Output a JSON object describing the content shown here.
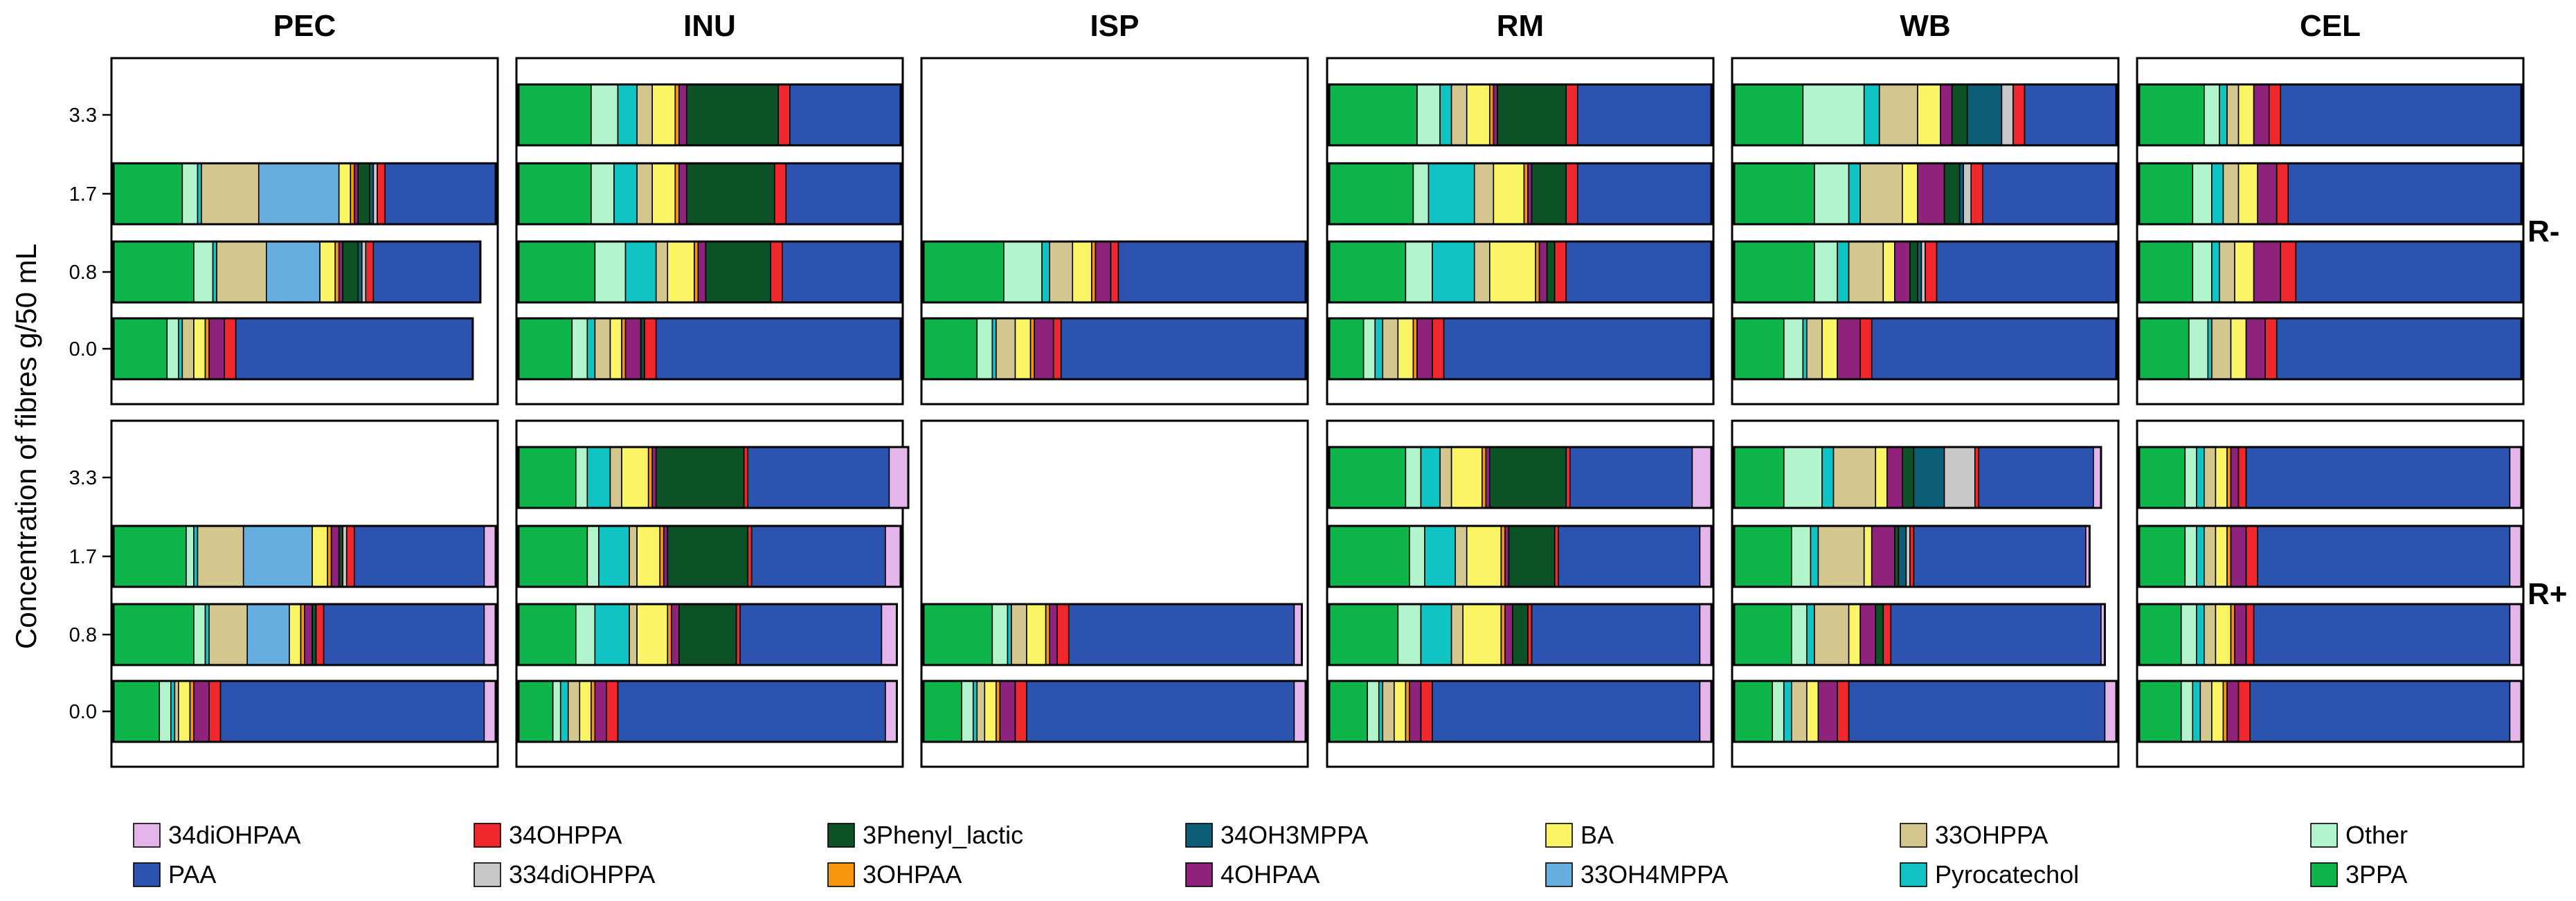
{
  "chart_data": {
    "type": "stacked-horizontal-bar",
    "ylabel": "Concentration of fibres g/50 mL",
    "row_labels": [
      "R-",
      "R+"
    ],
    "column_labels": [
      "PEC",
      "INU",
      "ISP",
      "RM",
      "WB",
      "CEL"
    ],
    "y_ticks": [
      "3.3",
      "1.7",
      "0.8",
      "0.0"
    ],
    "legend_order": [
      "34diOHPAA",
      "34OHPPA",
      "3Phenyl_lactic",
      "34OH3MPPA",
      "BA",
      "33OHPPA",
      "Other",
      "PAA",
      "334diOHPPA",
      "3OHPAA",
      "4OHPAA",
      "33OH4MPPA",
      "Pyrocatechol",
      "3PPA"
    ],
    "stack_order": [
      "3PPA",
      "Other",
      "Pyrocatechol",
      "33OHPPA",
      "33OH4MPPA",
      "BA",
      "3OHPAA",
      "4OHPAA",
      "3Phenyl_lactic",
      "34OH3MPPA",
      "334diOHPPA",
      "34OHPPA",
      "PAA",
      "34diOHPAA"
    ],
    "colors": {
      "34diOHPAA": "#e3b5ea",
      "34OHPPA": "#f0282d",
      "3Phenyl_lactic": "#0c5226",
      "34OH3MPPA": "#0b5e75",
      "BA": "#fbf566",
      "33OHPPA": "#d3c68f",
      "Other": "#b2f4cc",
      "PAA": "#2c53b0",
      "334diOHPPA": "#c8c8c8",
      "3OHPAA": "#f7950e",
      "4OHPAA": "#8f237b",
      "33OH4MPPA": "#66aee0",
      "Pyrocatechol": "#10c4c4",
      "3PPA": "#0eb54a"
    },
    "panels": [
      {
        "row": "R-",
        "column": "PEC",
        "bars": [
          {
            "conc": "3.3",
            "segments": {}
          },
          {
            "conc": "1.7",
            "segments": {
              "3PPA": 0.18,
              "Other": 0.04,
              "Pyrocatechol": 0.01,
              "33OHPPA": 0.15,
              "33OH4MPPA": 0.21,
              "BA": 0.03,
              "3OHPAA": 0.01,
              "4OHPAA": 0.01,
              "3Phenyl_lactic": 0.03,
              "34OH3MPPA": 0.01,
              "334diOHPPA": 0.01,
              "34OHPPA": 0.02,
              "PAA": 0.29
            }
          },
          {
            "conc": "0.8",
            "segments": {
              "3PPA": 0.21,
              "Other": 0.05,
              "Pyrocatechol": 0.01,
              "33OHPPA": 0.13,
              "33OH4MPPA": 0.14,
              "BA": 0.04,
              "3OHPAA": 0.01,
              "4OHPAA": 0.01,
              "3Phenyl_lactic": 0.04,
              "34OH3MPPA": 0.01,
              "334diOHPPA": 0.01,
              "34OHPPA": 0.02,
              "PAA": 0.28
            }
          },
          {
            "conc": "0.0",
            "segments": {
              "3PPA": 0.14,
              "Other": 0.03,
              "Pyrocatechol": 0.01,
              "33OHPPA": 0.03,
              "BA": 0.03,
              "3OHPAA": 0.01,
              "4OHPAA": 0.04,
              "34OHPPA": 0.03,
              "PAA": 0.62
            }
          }
        ]
      },
      {
        "row": "R-",
        "column": "INU",
        "bars": [
          {
            "conc": "3.3",
            "segments": {
              "3PPA": 0.19,
              "Other": 0.07,
              "Pyrocatechol": 0.05,
              "33OHPPA": 0.04,
              "BA": 0.06,
              "3OHPAA": 0.01,
              "4OHPAA": 0.02,
              "3Phenyl_lactic": 0.24,
              "34OHPPA": 0.03,
              "PAA": 0.29
            }
          },
          {
            "conc": "1.7",
            "segments": {
              "3PPA": 0.19,
              "Other": 0.06,
              "Pyrocatechol": 0.06,
              "33OHPPA": 0.04,
              "BA": 0.06,
              "3OHPAA": 0.01,
              "4OHPAA": 0.02,
              "3Phenyl_lactic": 0.23,
              "34OHPPA": 0.03,
              "PAA": 0.3
            }
          },
          {
            "conc": "0.8",
            "segments": {
              "3PPA": 0.2,
              "Other": 0.08,
              "Pyrocatechol": 0.08,
              "33OHPPA": 0.03,
              "BA": 0.07,
              "3OHPAA": 0.01,
              "4OHPAA": 0.02,
              "3Phenyl_lactic": 0.17,
              "34OHPPA": 0.03,
              "PAA": 0.31
            }
          },
          {
            "conc": "0.0",
            "segments": {
              "3PPA": 0.14,
              "Other": 0.04,
              "Pyrocatechol": 0.02,
              "33OHPPA": 0.04,
              "BA": 0.03,
              "3OHPAA": 0.01,
              "4OHPAA": 0.04,
              "3Phenyl_lactic": 0.01,
              "34OHPPA": 0.03,
              "PAA": 0.64
            }
          }
        ]
      },
      {
        "row": "R-",
        "column": "ISP",
        "bars": [
          {
            "conc": "3.3",
            "segments": {}
          },
          {
            "conc": "1.7",
            "segments": {}
          },
          {
            "conc": "0.8",
            "segments": {
              "3PPA": 0.21,
              "Other": 0.1,
              "Pyrocatechol": 0.02,
              "33OHPPA": 0.06,
              "BA": 0.05,
              "3OHPAA": 0.01,
              "4OHPAA": 0.04,
              "34OHPPA": 0.02,
              "PAA": 0.49
            }
          },
          {
            "conc": "0.0",
            "segments": {
              "3PPA": 0.14,
              "Other": 0.04,
              "Pyrocatechol": 0.01,
              "33OHPPA": 0.05,
              "BA": 0.04,
              "3OHPAA": 0.01,
              "4OHPAA": 0.05,
              "34OHPPA": 0.02,
              "PAA": 0.64
            }
          }
        ]
      },
      {
        "row": "R-",
        "column": "RM",
        "bars": [
          {
            "conc": "3.3",
            "segments": {
              "3PPA": 0.23,
              "Other": 0.06,
              "Pyrocatechol": 0.03,
              "33OHPPA": 0.04,
              "BA": 0.06,
              "3OHPAA": 0.01,
              "4OHPAA": 0.01,
              "3Phenyl_lactic": 0.18,
              "34OHPPA": 0.03,
              "PAA": 0.35
            }
          },
          {
            "conc": "1.7",
            "segments": {
              "3PPA": 0.22,
              "Other": 0.04,
              "Pyrocatechol": 0.12,
              "33OHPPA": 0.05,
              "BA": 0.08,
              "3OHPAA": 0.01,
              "4OHPAA": 0.01,
              "3Phenyl_lactic": 0.09,
              "34OHPPA": 0.03,
              "PAA": 0.35
            }
          },
          {
            "conc": "0.8",
            "segments": {
              "3PPA": 0.2,
              "Other": 0.07,
              "Pyrocatechol": 0.11,
              "33OHPPA": 0.04,
              "BA": 0.12,
              "3OHPAA": 0.01,
              "4OHPAA": 0.02,
              "3Phenyl_lactic": 0.02,
              "34OHPPA": 0.03,
              "PAA": 0.38
            }
          },
          {
            "conc": "0.0",
            "segments": {
              "3PPA": 0.09,
              "Other": 0.03,
              "Pyrocatechol": 0.02,
              "33OHPPA": 0.04,
              "BA": 0.04,
              "3OHPAA": 0.01,
              "4OHPAA": 0.04,
              "34OHPPA": 0.03,
              "PAA": 0.7
            }
          }
        ]
      },
      {
        "row": "R-",
        "column": "WB",
        "bars": [
          {
            "conc": "3.3",
            "segments": {
              "3PPA": 0.18,
              "Other": 0.16,
              "Pyrocatechol": 0.04,
              "33OHPPA": 0.1,
              "BA": 0.06,
              "4OHPAA": 0.03,
              "34OH3MPPA": 0.09,
              "3Phenyl_lactic": 0.04,
              "334diOHPPA": 0.03,
              "34OHPPA": 0.03,
              "PAA": 0.24
            }
          },
          {
            "conc": "1.7",
            "segments": {
              "3PPA": 0.21,
              "Other": 0.09,
              "Pyrocatechol": 0.03,
              "33OHPPA": 0.11,
              "BA": 0.04,
              "4OHPAA": 0.07,
              "3Phenyl_lactic": 0.04,
              "34OH3MPPA": 0.01,
              "334diOHPPA": 0.02,
              "34OHPPA": 0.03,
              "PAA": 0.35
            }
          },
          {
            "conc": "0.8",
            "segments": {
              "3PPA": 0.21,
              "Other": 0.06,
              "Pyrocatechol": 0.03,
              "33OHPPA": 0.09,
              "BA": 0.03,
              "4OHPAA": 0.04,
              "3Phenyl_lactic": 0.02,
              "34OH3MPPA": 0.01,
              "334diOHPPA": 0.01,
              "34OHPPA": 0.03,
              "PAA": 0.47
            }
          },
          {
            "conc": "0.0",
            "segments": {
              "3PPA": 0.13,
              "Other": 0.05,
              "Pyrocatechol": 0.01,
              "33OHPPA": 0.04,
              "BA": 0.04,
              "4OHPAA": 0.06,
              "34OHPPA": 0.03,
              "PAA": 0.64
            }
          }
        ]
      },
      {
        "row": "R-",
        "column": "CEL",
        "bars": [
          {
            "conc": "3.3",
            "segments": {
              "3PPA": 0.17,
              "Other": 0.04,
              "Pyrocatechol": 0.02,
              "33OHPPA": 0.03,
              "BA": 0.04,
              "4OHPAA": 0.04,
              "34OHPPA": 0.03,
              "PAA": 0.63
            }
          },
          {
            "conc": "1.7",
            "segments": {
              "3PPA": 0.14,
              "Other": 0.05,
              "Pyrocatechol": 0.03,
              "33OHPPA": 0.04,
              "BA": 0.05,
              "4OHPAA": 0.05,
              "34OHPPA": 0.03,
              "PAA": 0.61
            }
          },
          {
            "conc": "0.8",
            "segments": {
              "3PPA": 0.14,
              "Other": 0.05,
              "Pyrocatechol": 0.02,
              "33OHPPA": 0.04,
              "BA": 0.05,
              "4OHPAA": 0.07,
              "34OHPPA": 0.04,
              "PAA": 0.59
            }
          },
          {
            "conc": "0.0",
            "segments": {
              "3PPA": 0.13,
              "Other": 0.05,
              "Pyrocatechol": 0.01,
              "33OHPPA": 0.05,
              "BA": 0.04,
              "4OHPAA": 0.05,
              "34OHPPA": 0.03,
              "PAA": 0.64
            }
          }
        ]
      },
      {
        "row": "R+",
        "column": "PEC",
        "bars": [
          {
            "conc": "3.3",
            "segments": {}
          },
          {
            "conc": "1.7",
            "segments": {
              "3PPA": 0.19,
              "Other": 0.02,
              "Pyrocatechol": 0.01,
              "33OHPPA": 0.12,
              "33OH4MPPA": 0.18,
              "BA": 0.04,
              "3OHPAA": 0.01,
              "4OHPAA": 0.02,
              "3Phenyl_lactic": 0.01,
              "334diOHPPA": 0.01,
              "34OHPPA": 0.02,
              "PAA": 0.34,
              "34diOHPAA": 0.03
            }
          },
          {
            "conc": "0.8",
            "segments": {
              "3PPA": 0.21,
              "Other": 0.03,
              "Pyrocatechol": 0.01,
              "33OHPPA": 0.1,
              "33OH4MPPA": 0.11,
              "BA": 0.03,
              "3OHPAA": 0.01,
              "4OHPAA": 0.02,
              "3Phenyl_lactic": 0.01,
              "34OHPPA": 0.02,
              "PAA": 0.42,
              "34diOHPAA": 0.03
            }
          },
          {
            "conc": "0.0",
            "segments": {
              "3PPA": 0.12,
              "Other": 0.03,
              "Pyrocatechol": 0.01,
              "33OHPPA": 0.01,
              "BA": 0.03,
              "3OHPAA": 0.01,
              "4OHPAA": 0.04,
              "34OHPPA": 0.03,
              "PAA": 0.69,
              "34diOHPAA": 0.03
            }
          }
        ]
      },
      {
        "row": "R+",
        "column": "INU",
        "bars": [
          {
            "conc": "3.3",
            "segments": {
              "3PPA": 0.15,
              "Other": 0.03,
              "Pyrocatechol": 0.06,
              "33OHPPA": 0.03,
              "BA": 0.07,
              "3OHPAA": 0.01,
              "4OHPAA": 0.01,
              "3Phenyl_lactic": 0.23,
              "34OHPPA": 0.01,
              "PAA": 0.37,
              "34diOHPAA": 0.05
            }
          },
          {
            "conc": "1.7",
            "segments": {
              "3PPA": 0.18,
              "Other": 0.03,
              "Pyrocatechol": 0.08,
              "33OHPPA": 0.02,
              "BA": 0.06,
              "3OHPAA": 0.01,
              "4OHPAA": 0.01,
              "3Phenyl_lactic": 0.21,
              "34OHPPA": 0.01,
              "PAA": 0.35,
              "34diOHPAA": 0.04
            }
          },
          {
            "conc": "0.8",
            "segments": {
              "3PPA": 0.15,
              "Other": 0.05,
              "Pyrocatechol": 0.09,
              "33OHPPA": 0.02,
              "BA": 0.08,
              "3OHPAA": 0.01,
              "4OHPAA": 0.02,
              "3Phenyl_lactic": 0.15,
              "34OHPPA": 0.01,
              "PAA": 0.37,
              "34diOHPAA": 0.04
            }
          },
          {
            "conc": "0.0",
            "segments": {
              "3PPA": 0.09,
              "Other": 0.02,
              "Pyrocatechol": 0.02,
              "33OHPPA": 0.03,
              "BA": 0.03,
              "3OHPAA": 0.01,
              "4OHPAA": 0.03,
              "34OHPPA": 0.03,
              "PAA": 0.7,
              "34diOHPAA": 0.03
            }
          }
        ]
      },
      {
        "row": "R+",
        "column": "ISP",
        "bars": [
          {
            "conc": "3.3",
            "segments": {}
          },
          {
            "conc": "1.7",
            "segments": {}
          },
          {
            "conc": "0.8",
            "segments": {
              "3PPA": 0.18,
              "Other": 0.04,
              "Pyrocatechol": 0.01,
              "33OHPPA": 0.04,
              "BA": 0.05,
              "3OHPAA": 0.01,
              "4OHPAA": 0.02,
              "34OHPPA": 0.03,
              "PAA": 0.59,
              "34diOHPAA": 0.02
            }
          },
          {
            "conc": "0.0",
            "segments": {
              "3PPA": 0.1,
              "Other": 0.03,
              "Pyrocatechol": 0.01,
              "33OHPPA": 0.02,
              "BA": 0.03,
              "3OHPAA": 0.01,
              "4OHPAA": 0.04,
              "34OHPPA": 0.03,
              "PAA": 0.7,
              "34diOHPAA": 0.03
            }
          }
        ]
      },
      {
        "row": "R+",
        "column": "RM",
        "bars": [
          {
            "conc": "3.3",
            "segments": {
              "3PPA": 0.2,
              "Other": 0.04,
              "Pyrocatechol": 0.05,
              "33OHPPA": 0.03,
              "BA": 0.08,
              "3OHPAA": 0.01,
              "4OHPAA": 0.01,
              "3Phenyl_lactic": 0.2,
              "34OHPPA": 0.01,
              "PAA": 0.32,
              "34diOHPAA": 0.05
            }
          },
          {
            "conc": "1.7",
            "segments": {
              "3PPA": 0.21,
              "Other": 0.04,
              "Pyrocatechol": 0.08,
              "33OHPPA": 0.03,
              "BA": 0.09,
              "3OHPAA": 0.01,
              "4OHPAA": 0.01,
              "3Phenyl_lactic": 0.12,
              "34OHPPA": 0.01,
              "PAA": 0.37,
              "34diOHPAA": 0.03
            }
          },
          {
            "conc": "0.8",
            "segments": {
              "3PPA": 0.18,
              "Other": 0.06,
              "Pyrocatechol": 0.08,
              "33OHPPA": 0.03,
              "BA": 0.1,
              "3OHPAA": 0.01,
              "4OHPAA": 0.02,
              "3Phenyl_lactic": 0.04,
              "34OHPPA": 0.01,
              "PAA": 0.44,
              "34diOHPAA": 0.03
            }
          },
          {
            "conc": "0.0",
            "segments": {
              "3PPA": 0.1,
              "Other": 0.03,
              "Pyrocatechol": 0.01,
              "33OHPPA": 0.03,
              "BA": 0.03,
              "3OHPAA": 0.01,
              "4OHPAA": 0.03,
              "34OHPPA": 0.03,
              "PAA": 0.7,
              "34diOHPAA": 0.03
            }
          }
        ]
      },
      {
        "row": "R+",
        "column": "WB",
        "bars": [
          {
            "conc": "3.3",
            "segments": {
              "3PPA": 0.13,
              "Other": 0.1,
              "Pyrocatechol": 0.03,
              "33OHPPA": 0.11,
              "BA": 0.03,
              "4OHPAA": 0.04,
              "34OH3MPPA": 0.08,
              "3Phenyl_lactic": 0.03,
              "334diOHPPA": 0.08,
              "34OHPPA": 0.01,
              "PAA": 0.3,
              "34diOHPAA": 0.02
            }
          },
          {
            "conc": "1.7",
            "segments": {
              "3PPA": 0.15,
              "Other": 0.05,
              "Pyrocatechol": 0.02,
              "33OHPPA": 0.12,
              "BA": 0.02,
              "4OHPAA": 0.06,
              "34OH3MPPA": 0.02,
              "3Phenyl_lactic": 0.01,
              "334diOHPPA": 0.01,
              "34OHPPA": 0.01,
              "PAA": 0.45,
              "34diOHPAA": 0.01
            }
          },
          {
            "conc": "0.8",
            "segments": {
              "3PPA": 0.15,
              "Other": 0.04,
              "Pyrocatechol": 0.02,
              "33OHPPA": 0.09,
              "BA": 0.03,
              "4OHPAA": 0.04,
              "3Phenyl_lactic": 0.02,
              "34OHPPA": 0.02,
              "PAA": 0.55,
              "34diOHPAA": 0.01
            }
          },
          {
            "conc": "0.0",
            "segments": {
              "3PPA": 0.1,
              "Other": 0.03,
              "Pyrocatechol": 0.02,
              "33OHPPA": 0.04,
              "BA": 0.03,
              "4OHPAA": 0.05,
              "34OHPPA": 0.03,
              "PAA": 0.67,
              "34diOHPAA": 0.03
            }
          }
        ]
      },
      {
        "row": "R+",
        "column": "CEL",
        "bars": [
          {
            "conc": "3.3",
            "segments": {
              "3PPA": 0.12,
              "Other": 0.03,
              "Pyrocatechol": 0.02,
              "33OHPPA": 0.03,
              "BA": 0.03,
              "3OHPAA": 0.01,
              "4OHPAA": 0.02,
              "34OHPPA": 0.02,
              "PAA": 0.69,
              "34diOHPAA": 0.03
            }
          },
          {
            "conc": "1.7",
            "segments": {
              "3PPA": 0.12,
              "Other": 0.03,
              "Pyrocatechol": 0.02,
              "33OHPPA": 0.03,
              "BA": 0.03,
              "3OHPAA": 0.01,
              "4OHPAA": 0.04,
              "34OHPPA": 0.03,
              "PAA": 0.66,
              "34diOHPAA": 0.03
            }
          },
          {
            "conc": "0.8",
            "segments": {
              "3PPA": 0.11,
              "Other": 0.04,
              "Pyrocatechol": 0.02,
              "33OHPPA": 0.03,
              "BA": 0.04,
              "3OHPAA": 0.01,
              "4OHPAA": 0.03,
              "34OHPPA": 0.02,
              "PAA": 0.67,
              "34diOHPAA": 0.03
            }
          },
          {
            "conc": "0.0",
            "segments": {
              "3PPA": 0.11,
              "Other": 0.03,
              "Pyrocatechol": 0.02,
              "33OHPPA": 0.03,
              "BA": 0.03,
              "3OHPAA": 0.01,
              "4OHPAA": 0.03,
              "34OHPPA": 0.03,
              "PAA": 0.68,
              "34diOHPAA": 0.03
            }
          }
        ]
      }
    ]
  }
}
